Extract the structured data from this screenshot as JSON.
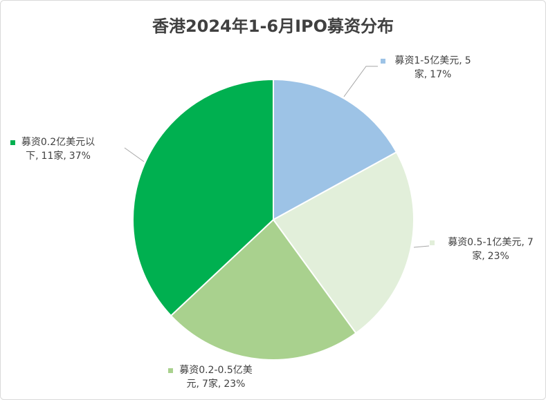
{
  "chart_data": {
    "type": "pie",
    "title": "香港2024年1-6月IPO募资分布",
    "categories": [
      "募资1-5亿美元,",
      "募资0.5-1亿美元,",
      "募资0.2-0.5亿美元,",
      "募资0.2亿美元以下,"
    ],
    "counts": [
      5,
      7,
      7,
      11
    ],
    "count_labels": [
      "5家,",
      "7家,",
      "7家,",
      "11家,"
    ],
    "values": [
      17,
      23,
      23,
      37
    ],
    "value_labels": [
      "17%",
      "23%",
      "23%",
      "37%"
    ],
    "colors": [
      "#9dc3e6",
      "#e2efda",
      "#a9d18e",
      "#00b050"
    ]
  }
}
